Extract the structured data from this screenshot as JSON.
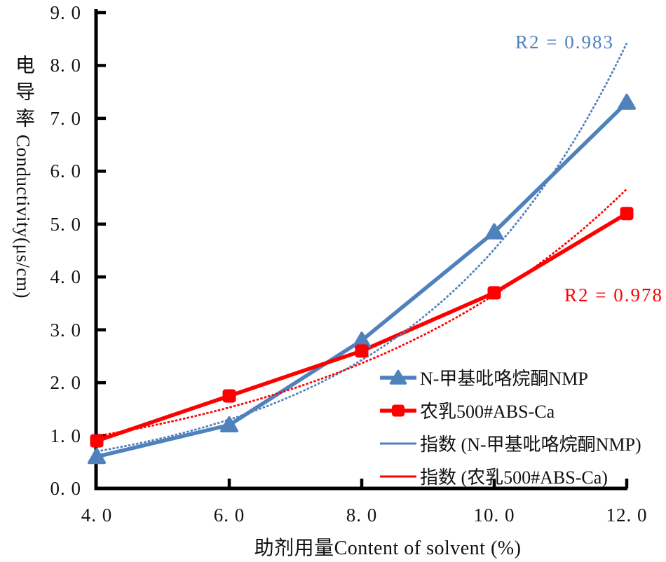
{
  "figure": {
    "background": "#ffffff",
    "axis_color": "#000000",
    "text_color": "#111111"
  },
  "chart_data": {
    "type": "line",
    "xlabel": "助剂用量Content of solvent (%)",
    "ylabel_cjk": "电导率",
    "ylabel_latin": "Conductivity(μs/cm)",
    "x": [
      4.0,
      6.0,
      8.0,
      10.0,
      12.0
    ],
    "xlim": [
      4.0,
      12.0
    ],
    "ylim": [
      0.0,
      9.0
    ],
    "x_tick_labels": [
      "4. 0",
      "6. 0",
      "8. 0",
      "10. 0",
      "12. 0"
    ],
    "y_ticks": [
      0,
      1,
      2,
      3,
      4,
      5,
      6,
      7,
      8,
      9
    ],
    "y_tick_labels": [
      "0. 0",
      "1. 0",
      "2. 0",
      "3. 0",
      "4. 0",
      "5. 0",
      "6. 0",
      "7. 0",
      "8. 0",
      "9. 0"
    ],
    "grid": false,
    "legend_position": "inside-lower-right",
    "series": [
      {
        "name": "N-甲基吡咯烷酮NMP",
        "color": "#4F81BD",
        "marker": "triangle",
        "values": [
          0.6,
          1.2,
          2.8,
          4.85,
          7.3
        ]
      },
      {
        "name": "农乳500#ABS-Ca",
        "color": "#FF0000",
        "marker": "square",
        "values": [
          0.9,
          1.75,
          2.6,
          3.7,
          5.2
        ]
      }
    ],
    "trendlines": [
      {
        "name": "指数 (N-甲基吡咯烷酮NMP)",
        "fit": "exponential",
        "color": "#4F81BD",
        "a": 0.2017,
        "b": 0.311,
        "annotation": "R2 = 0.983"
      },
      {
        "name": "指数 (农乳500#ABS-Ca)",
        "fit": "exponential",
        "color": "#FF0000",
        "a": 0.414,
        "b": 0.218,
        "annotation": "R2 = 0.978"
      }
    ],
    "legend": [
      "N-甲基吡咯烷酮NMP",
      "农乳500#ABS-Ca",
      "指数 (N-甲基吡咯烷酮NMP)",
      "指数 (农乳500#ABS-Ca)"
    ]
  },
  "annotations": {
    "r2_nmp": "R2 = 0.983",
    "r2_abs": "R2 = 0.978"
  }
}
